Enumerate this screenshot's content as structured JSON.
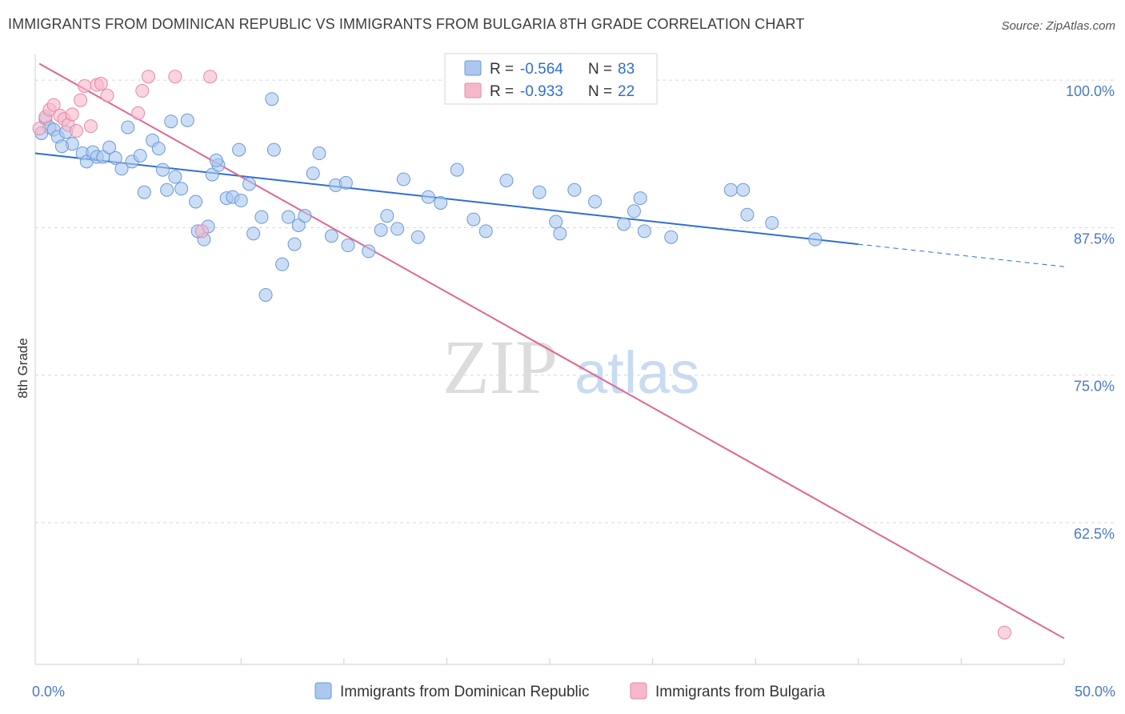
{
  "title": "IMMIGRANTS FROM DOMINICAN REPUBLIC VS IMMIGRANTS FROM BULGARIA 8TH GRADE CORRELATION CHART",
  "source": "Source: ZipAtlas.com",
  "watermark": {
    "zip": "ZIP",
    "atlas": "atlas"
  },
  "colors": {
    "blue_fill": "#aac8f0",
    "blue_stroke": "#6c9ad6",
    "blue_line": "#2f6fd0",
    "pink_fill": "#f6b7ca",
    "pink_stroke": "#e58aa8",
    "pink_line": "#e06694",
    "grid": "#d8d8d8",
    "tick_text": "#4a78c9"
  },
  "chart_data": {
    "type": "scatter",
    "title": "IMMIGRANTS FROM DOMINICAN REPUBLIC VS IMMIGRANTS FROM BULGARIA 8TH GRADE CORRELATION CHART",
    "xlabel": "",
    "ylabel": "8th Grade",
    "xlim": [
      0,
      50
    ],
    "ylim": [
      50.5,
      101.5
    ],
    "x_tick_labels": [
      {
        "value": 0,
        "label": "0.0%"
      },
      {
        "value": 50,
        "label": "50.0%"
      }
    ],
    "y_tick_labels": [
      {
        "value": 100,
        "label": "100.0%"
      },
      {
        "value": 87.5,
        "label": "87.5%"
      },
      {
        "value": 75,
        "label": "75.0%"
      },
      {
        "value": 62.5,
        "label": "62.5%"
      }
    ],
    "grid": true,
    "legend_placement": "bottom",
    "stats_box": [
      {
        "r_label": "R = ",
        "r_value": "-0.564",
        "n_label": "N = ",
        "n_value": "83"
      },
      {
        "r_label": "R = ",
        "r_value": "-0.933",
        "n_label": "N = ",
        "n_value": "22"
      }
    ],
    "series": [
      {
        "name": "Immigrants from Dominican Republic",
        "color": "#aac8f0",
        "trend": {
          "x0": 0,
          "y0": 93.8,
          "x1": 40,
          "y1": 86.1,
          "dash_to_x": 50,
          "dash_to_y": 84.2
        },
        "points": [
          {
            "x": 0.5,
            "y": 96.7
          },
          {
            "x": 0.7,
            "y": 96.0
          },
          {
            "x": 0.9,
            "y": 95.8
          },
          {
            "x": 1.1,
            "y": 95.2
          },
          {
            "x": 1.5,
            "y": 95.6
          },
          {
            "x": 1.8,
            "y": 94.6
          },
          {
            "x": 2.3,
            "y": 93.8
          },
          {
            "x": 2.5,
            "y": 93.1
          },
          {
            "x": 2.8,
            "y": 93.9
          },
          {
            "x": 3.0,
            "y": 93.5
          },
          {
            "x": 3.3,
            "y": 93.5
          },
          {
            "x": 3.6,
            "y": 94.3
          },
          {
            "x": 3.9,
            "y": 93.4
          },
          {
            "x": 4.2,
            "y": 92.5
          },
          {
            "x": 4.7,
            "y": 93.1
          },
          {
            "x": 4.5,
            "y": 96.0
          },
          {
            "x": 5.1,
            "y": 93.6
          },
          {
            "x": 5.3,
            "y": 90.5
          },
          {
            "x": 5.7,
            "y": 94.9
          },
          {
            "x": 6.0,
            "y": 94.2
          },
          {
            "x": 6.2,
            "y": 92.4
          },
          {
            "x": 6.4,
            "y": 90.7
          },
          {
            "x": 6.8,
            "y": 91.8
          },
          {
            "x": 6.6,
            "y": 96.5
          },
          {
            "x": 7.1,
            "y": 90.8
          },
          {
            "x": 7.4,
            "y": 96.6
          },
          {
            "x": 7.8,
            "y": 89.7
          },
          {
            "x": 8.2,
            "y": 86.5
          },
          {
            "x": 8.4,
            "y": 87.6
          },
          {
            "x": 8.6,
            "y": 92.0
          },
          {
            "x": 8.9,
            "y": 92.8
          },
          {
            "x": 8.8,
            "y": 93.2
          },
          {
            "x": 9.3,
            "y": 90.0
          },
          {
            "x": 9.6,
            "y": 90.1
          },
          {
            "x": 10.0,
            "y": 89.8
          },
          {
            "x": 9.9,
            "y": 94.1
          },
          {
            "x": 10.4,
            "y": 91.2
          },
          {
            "x": 10.6,
            "y": 87.0
          },
          {
            "x": 11.0,
            "y": 88.4
          },
          {
            "x": 11.2,
            "y": 81.8
          },
          {
            "x": 11.5,
            "y": 98.4
          },
          {
            "x": 11.6,
            "y": 94.1
          },
          {
            "x": 12.0,
            "y": 84.4
          },
          {
            "x": 12.3,
            "y": 88.4
          },
          {
            "x": 12.6,
            "y": 86.1
          },
          {
            "x": 12.8,
            "y": 87.7
          },
          {
            "x": 13.1,
            "y": 88.5
          },
          {
            "x": 13.5,
            "y": 92.1
          },
          {
            "x": 13.8,
            "y": 93.8
          },
          {
            "x": 14.4,
            "y": 86.8
          },
          {
            "x": 14.6,
            "y": 91.1
          },
          {
            "x": 15.1,
            "y": 91.3
          },
          {
            "x": 15.2,
            "y": 86.0
          },
          {
            "x": 16.2,
            "y": 85.5
          },
          {
            "x": 16.8,
            "y": 87.3
          },
          {
            "x": 17.1,
            "y": 88.5
          },
          {
            "x": 17.6,
            "y": 87.4
          },
          {
            "x": 17.9,
            "y": 91.6
          },
          {
            "x": 18.6,
            "y": 86.7
          },
          {
            "x": 19.1,
            "y": 90.1
          },
          {
            "x": 19.7,
            "y": 89.6
          },
          {
            "x": 20.5,
            "y": 92.4
          },
          {
            "x": 21.3,
            "y": 88.2
          },
          {
            "x": 21.9,
            "y": 87.2
          },
          {
            "x": 22.9,
            "y": 91.5
          },
          {
            "x": 24.5,
            "y": 90.5
          },
          {
            "x": 25.3,
            "y": 88.0
          },
          {
            "x": 25.5,
            "y": 87.0
          },
          {
            "x": 26.2,
            "y": 90.7
          },
          {
            "x": 27.2,
            "y": 89.7
          },
          {
            "x": 28.6,
            "y": 87.8
          },
          {
            "x": 29.1,
            "y": 88.9
          },
          {
            "x": 29.4,
            "y": 90.0
          },
          {
            "x": 29.6,
            "y": 87.2
          },
          {
            "x": 30.9,
            "y": 86.7
          },
          {
            "x": 33.8,
            "y": 90.7
          },
          {
            "x": 34.4,
            "y": 90.7
          },
          {
            "x": 34.6,
            "y": 88.6
          },
          {
            "x": 35.8,
            "y": 87.9
          },
          {
            "x": 37.9,
            "y": 86.5
          },
          {
            "x": 0.3,
            "y": 95.5
          },
          {
            "x": 1.3,
            "y": 94.4
          },
          {
            "x": 7.9,
            "y": 87.2
          }
        ]
      },
      {
        "name": "Immigrants from Bulgaria",
        "color": "#f6b7ca",
        "trend": {
          "x0": 0.2,
          "y0": 101.4,
          "x1": 50,
          "y1": 52.7
        },
        "points": [
          {
            "x": 0.2,
            "y": 95.9
          },
          {
            "x": 0.5,
            "y": 96.9
          },
          {
            "x": 0.7,
            "y": 97.5
          },
          {
            "x": 0.9,
            "y": 97.9
          },
          {
            "x": 1.2,
            "y": 97.0
          },
          {
            "x": 1.4,
            "y": 96.7
          },
          {
            "x": 1.6,
            "y": 96.2
          },
          {
            "x": 1.8,
            "y": 97.1
          },
          {
            "x": 2.0,
            "y": 95.7
          },
          {
            "x": 2.2,
            "y": 98.3
          },
          {
            "x": 2.4,
            "y": 99.5
          },
          {
            "x": 2.7,
            "y": 96.1
          },
          {
            "x": 3.0,
            "y": 99.6
          },
          {
            "x": 3.2,
            "y": 99.7
          },
          {
            "x": 3.5,
            "y": 98.7
          },
          {
            "x": 5.0,
            "y": 97.2
          },
          {
            "x": 5.2,
            "y": 99.1
          },
          {
            "x": 5.5,
            "y": 100.3
          },
          {
            "x": 6.8,
            "y": 100.3
          },
          {
            "x": 8.1,
            "y": 87.2
          },
          {
            "x": 8.5,
            "y": 100.3
          },
          {
            "x": 47.1,
            "y": 53.2
          }
        ]
      }
    ]
  }
}
